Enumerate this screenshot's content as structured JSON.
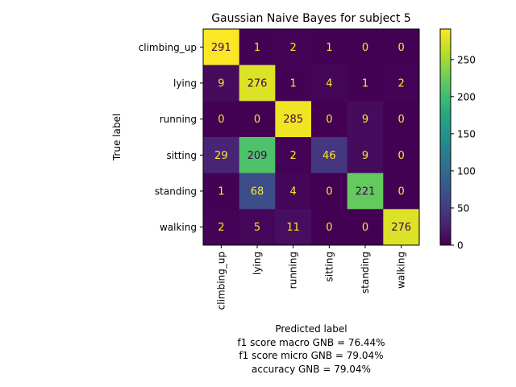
{
  "chart_data": {
    "type": "heatmap",
    "title": "Gaussian Naive Bayes for subject 5",
    "xlabel": "Predicted label",
    "ylabel": "True label",
    "x_categories": [
      "climbing_up",
      "lying",
      "running",
      "sitting",
      "standing",
      "walking"
    ],
    "y_categories": [
      "climbing_up",
      "lying",
      "running",
      "sitting",
      "standing",
      "walking"
    ],
    "values": [
      [
        291,
        1,
        2,
        1,
        0,
        0
      ],
      [
        9,
        276,
        1,
        4,
        1,
        2
      ],
      [
        0,
        0,
        285,
        0,
        9,
        0
      ],
      [
        29,
        209,
        2,
        46,
        9,
        0
      ],
      [
        1,
        68,
        4,
        0,
        221,
        0
      ],
      [
        2,
        5,
        11,
        0,
        0,
        276
      ]
    ],
    "colormap": "viridis",
    "value_range": [
      0,
      291
    ],
    "colorbar_ticks": [
      0,
      50,
      100,
      150,
      200,
      250
    ],
    "annotations": [
      "f1 score macro GNB = 76.44%",
      "f1 score micro GNB = 79.04%",
      "accuracy GNB = 79.04%"
    ],
    "colors": {
      "light_text": "#fde725",
      "dark_text": "#440154"
    }
  }
}
